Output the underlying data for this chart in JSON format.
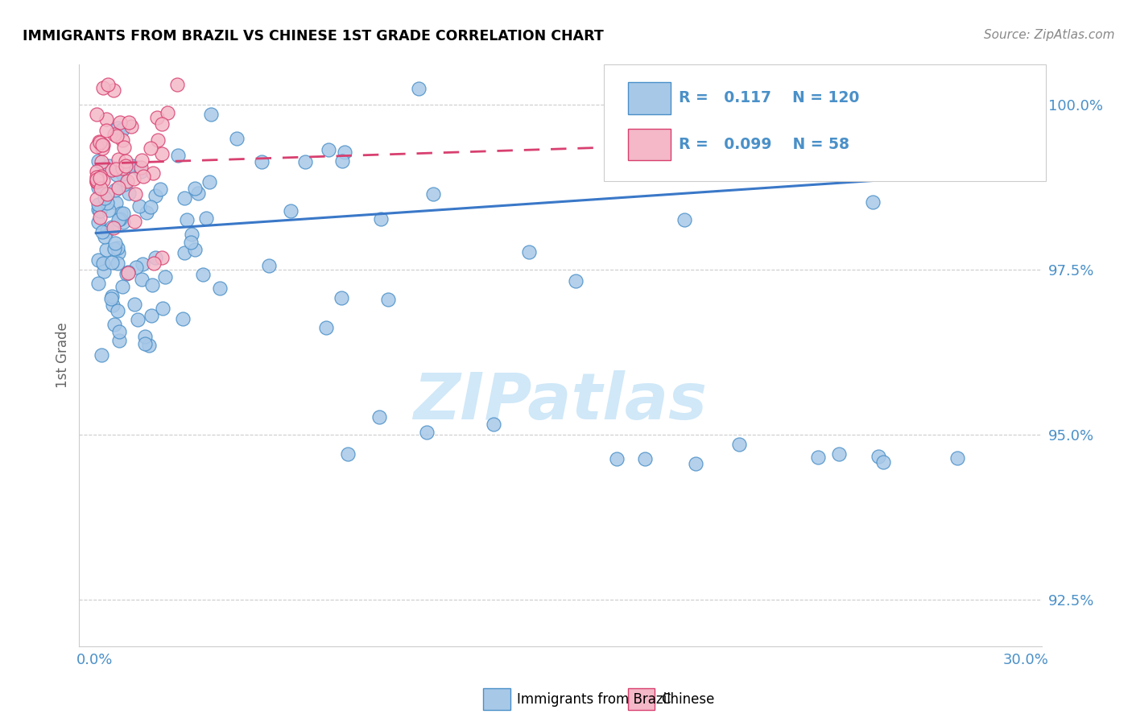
{
  "title": "IMMIGRANTS FROM BRAZIL VS CHINESE 1ST GRADE CORRELATION CHART",
  "source": "Source: ZipAtlas.com",
  "ylabel": "1st Grade",
  "legend_labels": [
    "Immigrants from Brazil",
    "Chinese"
  ],
  "blue_R": "0.117",
  "blue_N": "120",
  "pink_R": "0.099",
  "pink_N": "58",
  "blue_color": "#a8c8e8",
  "pink_color": "#f4b8c8",
  "blue_edge_color": "#4a90c8",
  "pink_edge_color": "#d84070",
  "blue_line_color": "#3a78c8",
  "pink_line_color": "#d84070",
  "grid_color": "#cccccc",
  "tick_color": "#4a90c8",
  "watermark_color": "#d0e8f8",
  "xlim": [
    0.0,
    0.3
  ],
  "ylim": [
    91.8,
    100.6
  ],
  "ytick_vals": [
    92.5,
    95.0,
    97.5,
    100.0
  ],
  "ytick_labels": [
    "92.5%",
    "95.0%",
    "97.5%",
    "100.0%"
  ],
  "xtick_vals": [
    0.0,
    0.3
  ],
  "xtick_labels": [
    "0.0%",
    "30.0%"
  ],
  "blue_trend_x": [
    0.0,
    0.3
  ],
  "blue_trend_y": [
    98.05,
    99.0
  ],
  "pink_trend_x": [
    0.0,
    0.3
  ],
  "pink_trend_y": [
    99.1,
    99.55
  ]
}
